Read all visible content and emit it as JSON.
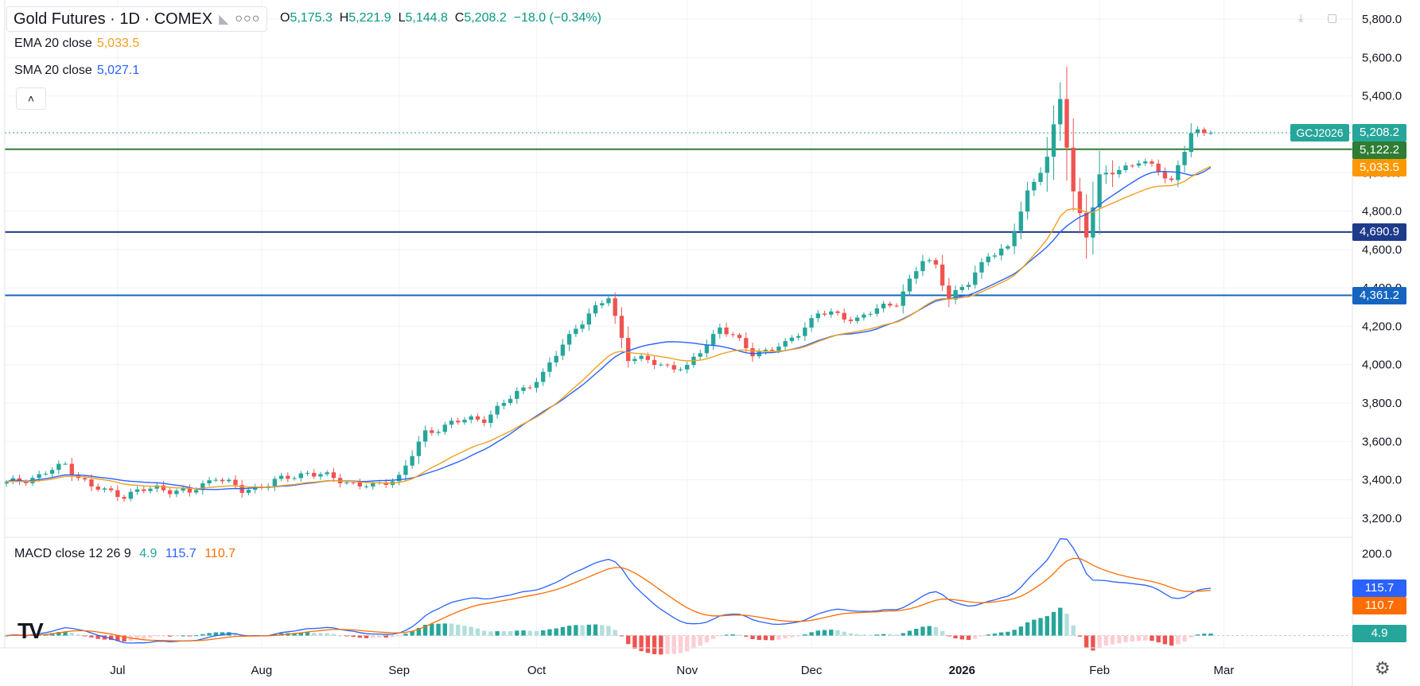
{
  "header": {
    "title": "Gold Futures · 1D · COMEX",
    "ohlc": {
      "o_label": "O",
      "o": "5,175.3",
      "h_label": "H",
      "h": "5,221.9",
      "l_label": "L",
      "l": "5,144.8",
      "c_label": "C",
      "c": "5,208.2",
      "change": "−18.0 (−0.34%)"
    }
  },
  "indicators": {
    "ema": {
      "label": "EMA 20 close",
      "value": "5,033.5",
      "color": "#f0a020"
    },
    "sma": {
      "label": "SMA 20 close",
      "value": "5,027.1",
      "color": "#2962ff"
    },
    "macd": {
      "label": "MACD close 12 26 9",
      "hist": "4.9",
      "macd": "115.7",
      "signal": "110.7"
    }
  },
  "collapse_icon": "chevron-up-icon",
  "price_tags": [
    {
      "label": "5,208.2",
      "value": 5208.2,
      "color": "#26a69a"
    },
    {
      "label": "5,122.2",
      "value": 5122.2,
      "color": "#2e7d32"
    },
    {
      "label": "5,033.5",
      "value": 5033.5,
      "color": "#ff9800"
    },
    {
      "label": "4,690.9",
      "value": 4690.9,
      "color": "#1e3a8a"
    },
    {
      "label": "4,361.2",
      "value": 4361.2,
      "color": "#1565c0"
    }
  ],
  "symbol_tag": "GCJ2026",
  "macd_tags": [
    {
      "label": "115.7",
      "value": 115.7,
      "color": "#2962ff"
    },
    {
      "label": "110.7",
      "value": 110.7,
      "color": "#ff6d00"
    },
    {
      "label": "4.9",
      "value": 4.9,
      "color": "#26a69a"
    }
  ],
  "chart_data": {
    "type": "candlestick",
    "price_axis": {
      "ylim": [
        3100,
        5900
      ],
      "ticks": [
        3200,
        3400,
        3600,
        3800,
        4000,
        4200,
        4400,
        4600,
        4800,
        5000,
        5200,
        5400,
        5600,
        5800
      ],
      "tick_labels": [
        "3,200.0",
        "3,400.0",
        "3,600.0",
        "3,800.0",
        "4,000.0",
        "4,200.0",
        "4,400.0",
        "4,600.0",
        "4,800.0",
        "5,000.0",
        "5,200.0",
        "5,400.0",
        "5,600.0",
        "5,800.0"
      ]
    },
    "macd_axis": {
      "ylim": [
        -30,
        240
      ],
      "ticks": [
        200
      ],
      "tick_labels": [
        "200.0"
      ]
    },
    "time_axis": {
      "labels": [
        "Jul",
        "Aug",
        "Sep",
        "Oct",
        "Nov",
        "Dec",
        "2026",
        "Feb",
        "Mar"
      ],
      "label_index": [
        17,
        39,
        60,
        81,
        104,
        123,
        146,
        167,
        186
      ]
    },
    "horizontal_lines": [
      {
        "value": 5122.2,
        "color": "#2e7d32"
      },
      {
        "value": 4690.9,
        "color": "#1e3a8a"
      },
      {
        "value": 4361.2,
        "color": "#1565c0"
      }
    ],
    "close_anchors": [
      [
        0,
        3380
      ],
      [
        5,
        3420
      ],
      [
        9,
        3480
      ],
      [
        13,
        3360
      ],
      [
        18,
        3320
      ],
      [
        23,
        3360
      ],
      [
        28,
        3330
      ],
      [
        32,
        3420
      ],
      [
        36,
        3340
      ],
      [
        40,
        3380
      ],
      [
        46,
        3440
      ],
      [
        52,
        3390
      ],
      [
        56,
        3360
      ],
      [
        60,
        3420
      ],
      [
        64,
        3640
      ],
      [
        68,
        3700
      ],
      [
        73,
        3720
      ],
      [
        78,
        3850
      ],
      [
        82,
        3950
      ],
      [
        87,
        4200
      ],
      [
        92,
        4350
      ],
      [
        95,
        4040
      ],
      [
        100,
        4000
      ],
      [
        104,
        3980
      ],
      [
        109,
        4200
      ],
      [
        114,
        4060
      ],
      [
        119,
        4100
      ],
      [
        124,
        4270
      ],
      [
        130,
        4240
      ],
      [
        136,
        4330
      ],
      [
        140,
        4540
      ],
      [
        142,
        4520
      ],
      [
        144,
        4350
      ],
      [
        147,
        4420
      ],
      [
        150,
        4580
      ],
      [
        153,
        4600
      ],
      [
        156,
        4900
      ],
      [
        159,
        5080
      ],
      [
        161,
        5380
      ],
      [
        163,
        4900
      ],
      [
        165,
        4680
      ],
      [
        167,
        4970
      ],
      [
        170,
        5020
      ],
      [
        173,
        5060
      ],
      [
        176,
        5010
      ],
      [
        178,
        4960
      ],
      [
        181,
        5200
      ],
      [
        184,
        5208.2
      ]
    ],
    "candle_count": 185,
    "ema20_last": 5033.5,
    "sma20_last": 5027.1,
    "macd_last": 115.7,
    "signal_last": 110.7,
    "hist_last": 4.9
  }
}
